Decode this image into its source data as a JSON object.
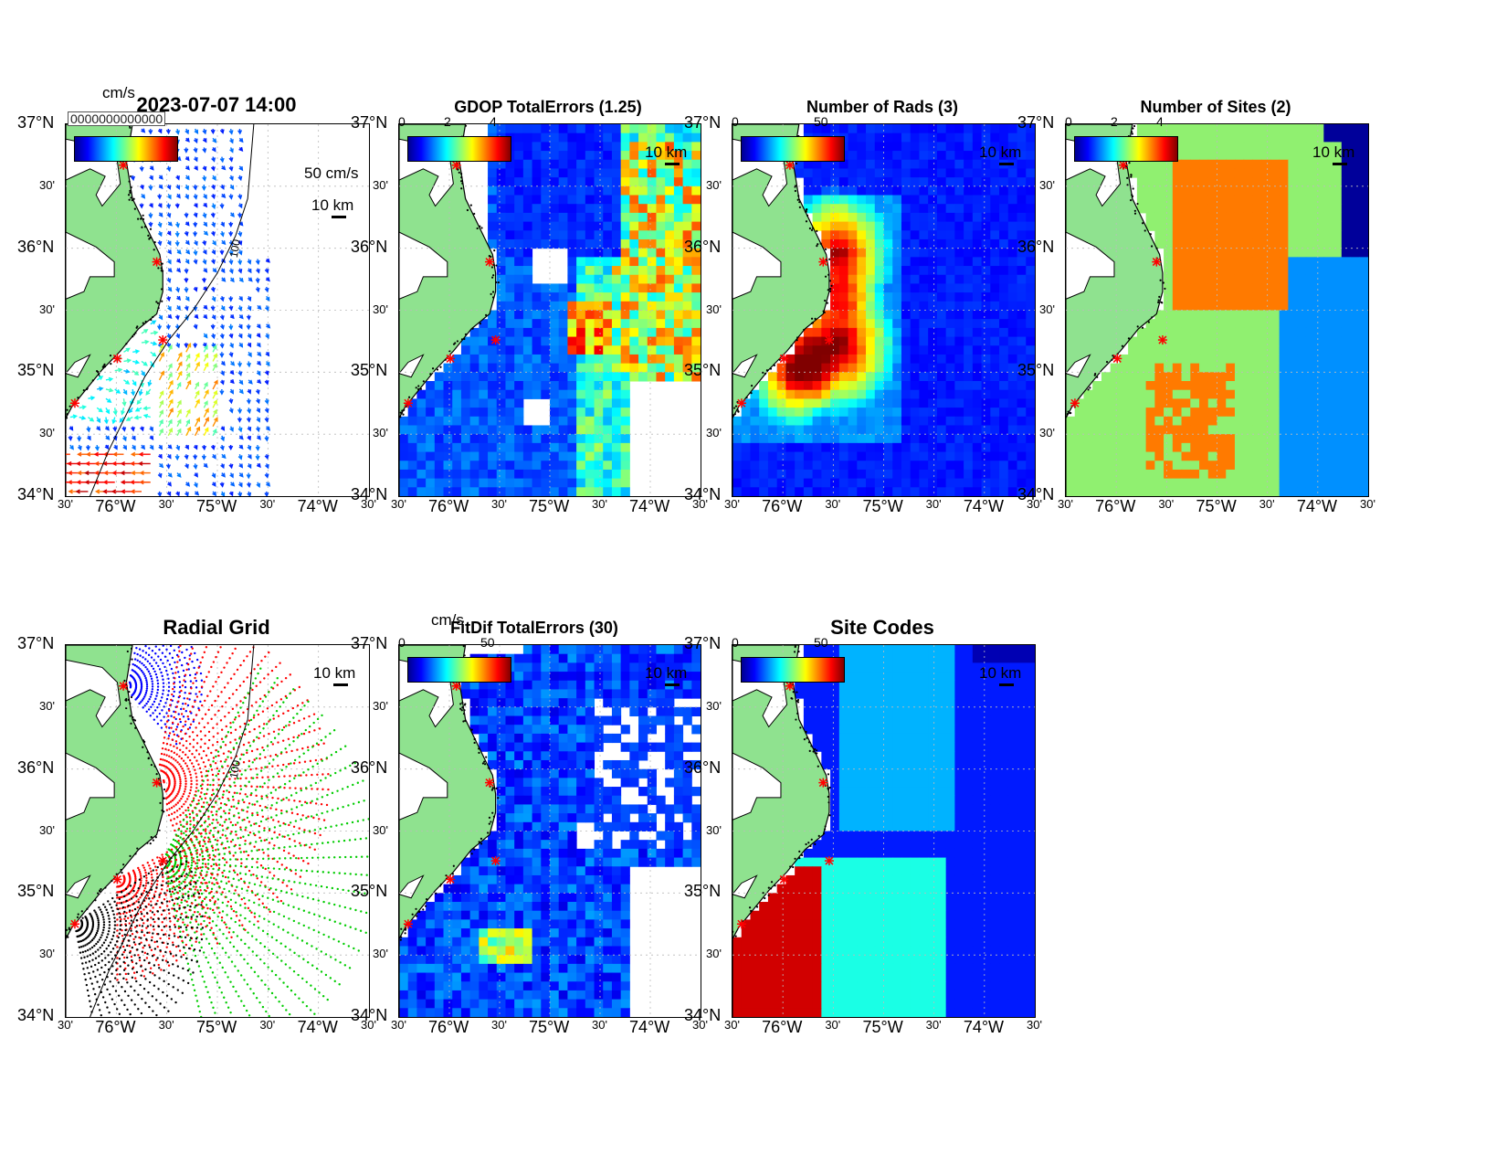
{
  "figure": {
    "timestamp_title": "2023-07-07 14:00",
    "overlap_text": "0000000000000",
    "units_cms": "cm/s",
    "vector_scale": "50 cm/s",
    "scale_bar": "10 km"
  },
  "axes": {
    "lat_labels": [
      "37°N",
      "30'",
      "36°N",
      "30'",
      "35°N",
      "30'",
      "34°N"
    ],
    "lon_labels": [
      "30'",
      "76°W",
      "30'",
      "75°W",
      "30'",
      "74°W",
      "30'"
    ],
    "lat_range": [
      34,
      37
    ],
    "lon_range": [
      -76.5,
      -73.5
    ],
    "contour_100": "100"
  },
  "panels": [
    {
      "id": "currents",
      "title": "",
      "cbar_ticks": [],
      "contour_label": "",
      "kind": "vectors"
    },
    {
      "id": "gdop",
      "title": "GDOP TotalErrors (1.25)",
      "cbar_ticks": [
        "0",
        "2",
        "4"
      ],
      "contour_label": "1.25",
      "kind": "field"
    },
    {
      "id": "nrads",
      "title": "Number of Rads (3)",
      "cbar_ticks": [
        "0",
        "50"
      ],
      "contour_label": "",
      "kind": "field"
    },
    {
      "id": "nsites",
      "title": "Number of Sites (2)",
      "cbar_ticks": [
        "0",
        "2",
        "4"
      ],
      "contour_label": "2",
      "kind": "field"
    },
    {
      "id": "radgrid",
      "title": "Radial Grid",
      "cbar_ticks": [],
      "contour_label": "100",
      "kind": "radial"
    },
    {
      "id": "fitdif",
      "title": "FitDif TotalErrors (30)",
      "cbar_ticks": [
        "0",
        "50"
      ],
      "contour_label": "30",
      "kind": "field"
    },
    {
      "id": "sitecodes",
      "title": "Site Codes",
      "cbar_ticks": [
        "0",
        "50"
      ],
      "contour_label": "",
      "kind": "field"
    }
  ],
  "colors": {
    "land": "#8fe28f",
    "site_marker": "#ff0000",
    "radial_sites": [
      "#0000ff",
      "#ff0000",
      "#00cc00",
      "#000000"
    ]
  }
}
